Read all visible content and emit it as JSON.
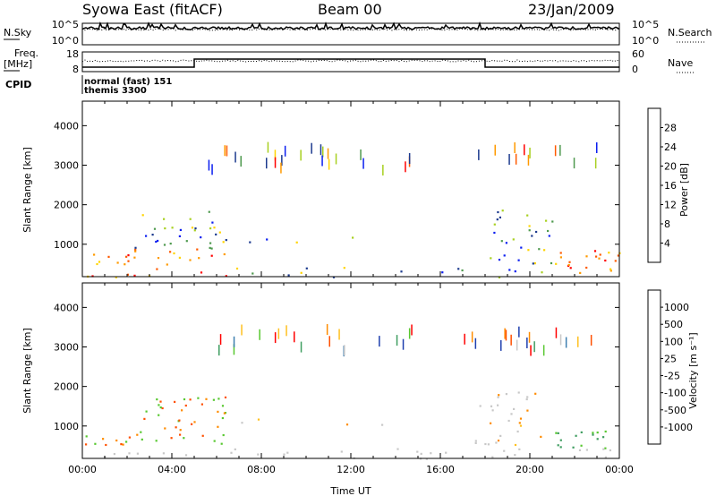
{
  "header": {
    "station": "Syowa East (fitACF)",
    "beam": "Beam 00",
    "date": "23/Jan/2009"
  },
  "nsky_panel": {
    "left_label": "N.Sky",
    "right_label": "N.Search",
    "left_ticks": [
      "10^5",
      "10^0"
    ],
    "right_ticks": [
      "10^5",
      "10^0"
    ]
  },
  "freq_panel": {
    "left_label_line1": "Freq.",
    "left_label_line2": "[MHz]",
    "right_label": "Nave",
    "left_ticks": [
      "18",
      "8"
    ],
    "right_ticks": [
      "60",
      "0"
    ]
  },
  "cpid_panel": {
    "label": "CPID",
    "entries": [
      {
        "text": "normal (fast) 151"
      },
      {
        "text": "themis 3300"
      }
    ]
  },
  "chart_data": [
    {
      "type": "heatmap",
      "name": "power",
      "ylabel": "Slant Range [km]",
      "yticks": [
        "1000",
        "2000",
        "3000",
        "4000"
      ],
      "ylim": [
        180,
        4620
      ],
      "xlim": [
        0,
        24
      ],
      "colorbar_label": "Power [dB]",
      "colorbar_ticks": [
        "28",
        "24",
        "20",
        "16",
        "12",
        "8",
        "4"
      ],
      "colorbar_colors": [
        "#ff0000",
        "#ff5a00",
        "#ff9a00",
        "#ffd400",
        "#a8d020",
        "#4f9a4f",
        "#1c3a8e",
        "#0a1ef0"
      ],
      "scatter_regions": [
        {
          "t0": 0.1,
          "t1": 2.3,
          "r0": 450,
          "r1": 800,
          "density": 0.8
        },
        {
          "t0": 2.3,
          "t1": 6.5,
          "r0": 500,
          "r1": 1850,
          "density": 0.45
        },
        {
          "t0": 6.5,
          "t1": 14.3,
          "r0": 1050,
          "r1": 1250,
          "density": 0.15
        },
        {
          "t0": 17.5,
          "t1": 21.0,
          "r0": 500,
          "r1": 1900,
          "density": 0.35
        },
        {
          "t0": 21.0,
          "t1": 24.0,
          "r0": 400,
          "r1": 900,
          "density": 0.7
        },
        {
          "t0": 0.1,
          "t1": 24.0,
          "r0": 180,
          "r1": 450,
          "density": 0.25
        }
      ]
    },
    {
      "type": "heatmap",
      "name": "velocity",
      "ylabel": "Slant Range [km]",
      "yticks": [
        "1000",
        "2000",
        "3000",
        "4000"
      ],
      "ylim": [
        180,
        4620
      ],
      "xlim": [
        0,
        24
      ],
      "xticks": [
        "00:00",
        "04:00",
        "08:00",
        "12:00",
        "16:00",
        "20:00",
        "00:00"
      ],
      "xlabel": "Time UT",
      "colorbar_label": "Velocity [m s⁻¹]",
      "colorbar_ticks": [
        "1000",
        "500",
        "100",
        "25",
        "-25",
        "-100",
        "-500",
        "-1000"
      ],
      "colorbar_colors": [
        "#1f3fae",
        "#3e7fb0",
        "#3f9d60",
        "#58c830",
        "#c8c8c8",
        "#ffc020",
        "#ff8c00",
        "#ff5000",
        "#ff0000"
      ],
      "scatter_regions": [
        {
          "t0": 0.1,
          "t1": 2.3,
          "r0": 450,
          "r1": 800,
          "density": 0.8
        },
        {
          "t0": 2.3,
          "t1": 6.5,
          "r0": 500,
          "r1": 1850,
          "density": 0.45
        },
        {
          "t0": 6.5,
          "t1": 14.3,
          "r0": 1050,
          "r1": 1250,
          "density": 0.15
        },
        {
          "t0": 17.5,
          "t1": 21.0,
          "r0": 500,
          "r1": 1900,
          "density": 0.35
        },
        {
          "t0": 21.0,
          "t1": 24.0,
          "r0": 400,
          "r1": 900,
          "density": 0.7
        },
        {
          "t0": 0.1,
          "t1": 24.0,
          "r0": 180,
          "r1": 450,
          "density": 0.25
        }
      ]
    }
  ]
}
